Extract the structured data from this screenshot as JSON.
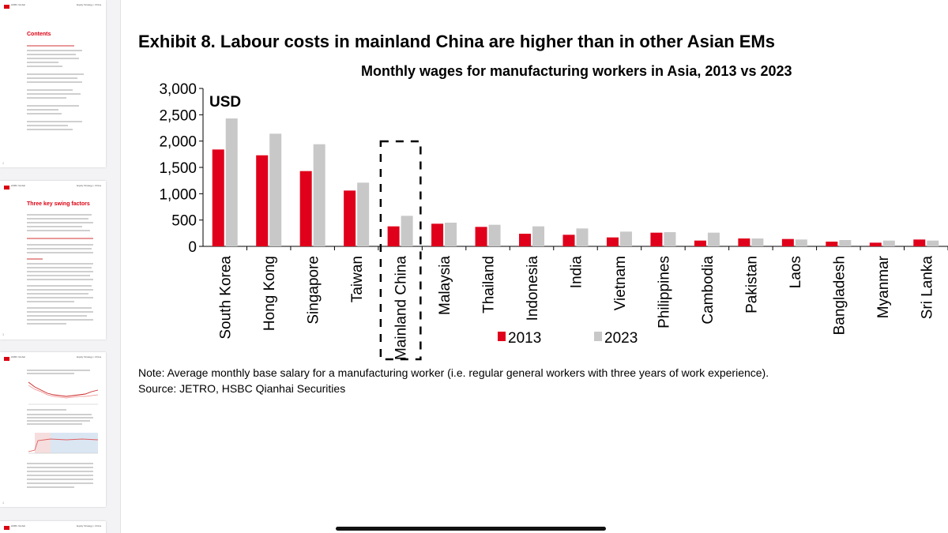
{
  "sidebar": {
    "thumbnails": [
      {
        "title": "Contents",
        "bank": "HSBC Global",
        "header": "Equity Strategy • China"
      },
      {
        "title": "Three key swing factors",
        "bank": "HSBC Global",
        "header": "Equity Strategy • China"
      },
      {
        "title": "",
        "bank": "HSBC Global",
        "header": "Equity Strategy • China"
      },
      {
        "title": "",
        "bank": "HSBC Global",
        "header": "Equity Strategy • China"
      }
    ]
  },
  "exhibit": {
    "title": "Exhibit 8. Labour costs in mainland China are higher than in other Asian EMs",
    "note": "Note: Average monthly base salary for a manufacturing worker (i.e. regular general workers with three years of work experience).",
    "source": "Source: JETRO, HSBC Qianhai Securities"
  },
  "chart_data": {
    "type": "bar",
    "title": "Monthly wages for manufacturing workers in Asia, 2013 vs 2023",
    "unit_label": "USD",
    "xlabel": "",
    "ylabel": "",
    "ylim": [
      0,
      3000
    ],
    "yticks": [
      0,
      500,
      1000,
      1500,
      2000,
      2500,
      3000
    ],
    "ytick_labels": [
      "0",
      "500",
      "1,000",
      "1,500",
      "2,000",
      "2,500",
      "3,000"
    ],
    "categories": [
      "South Korea",
      "Hong Kong",
      "Singapore",
      "Taiwan",
      "Mainland China",
      "Malaysia",
      "Thailand",
      "Indonesia",
      "India",
      "Vietnam",
      "Philippines",
      "Cambodia",
      "Pakistan",
      "Laos",
      "Bangladesh",
      "Myanmar",
      "Sri Lanka"
    ],
    "highlight_category": "Mainland China",
    "series": [
      {
        "name": "2013",
        "color": "#e0001b",
        "values": [
          1840,
          1730,
          1430,
          1060,
          380,
          430,
          370,
          240,
          220,
          170,
          260,
          110,
          150,
          140,
          90,
          70,
          130
        ]
      },
      {
        "name": "2023",
        "color": "#c8c8c8",
        "values": [
          2430,
          2140,
          1940,
          1210,
          580,
          450,
          410,
          380,
          340,
          280,
          270,
          260,
          150,
          130,
          120,
          110,
          110
        ]
      }
    ],
    "legend": [
      "2013",
      "2023"
    ],
    "legend_position": "bottom-center"
  }
}
